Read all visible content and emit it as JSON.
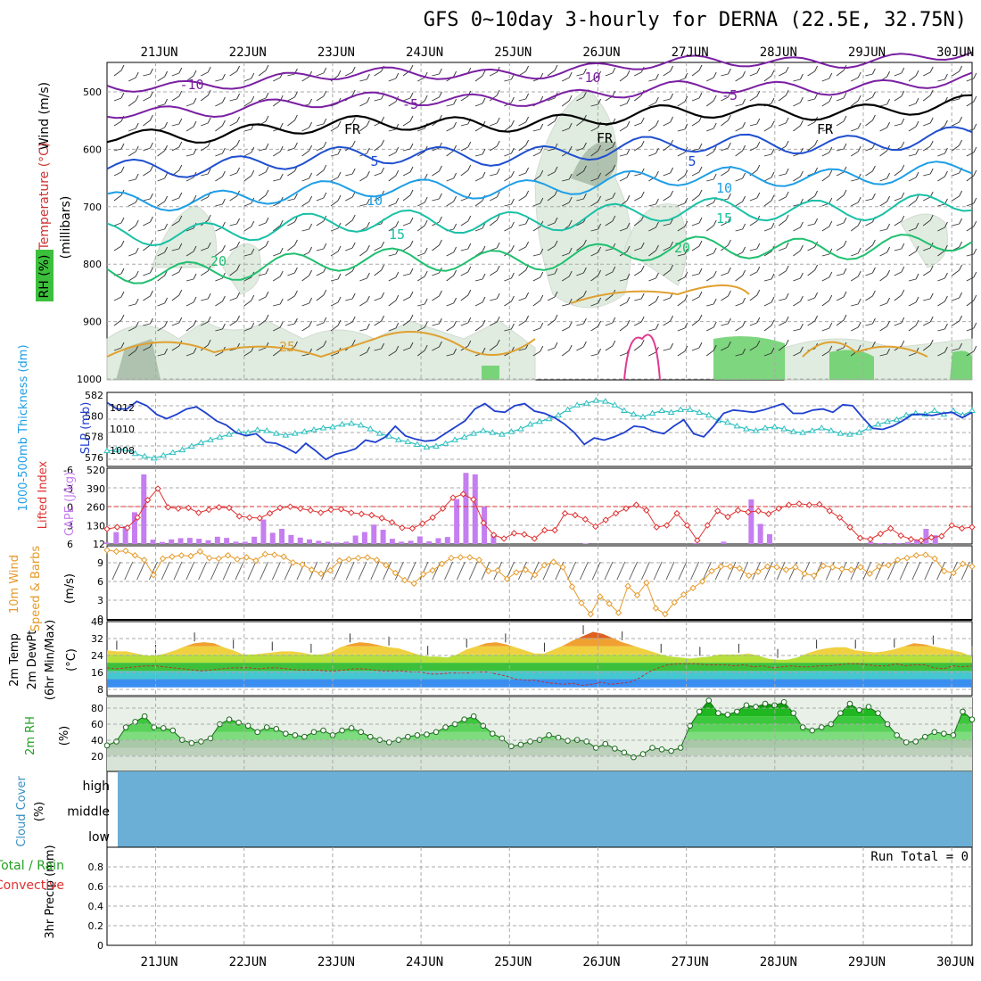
{
  "title": "GFS 0~10day 3-hourly for DERNA (22.5E, 32.75N)",
  "dates": [
    "21JUN",
    "22JUN",
    "23JUN",
    "24JUN",
    "25JUN",
    "26JUN",
    "27JUN",
    "28JUN",
    "29JUN",
    "30JUN"
  ],
  "colors": {
    "temp_purple": "#7a1fa2",
    "freezing": "#000000",
    "temp_blue": "#1f4fd0",
    "temp_lblue": "#1e9ee6",
    "temp_teal": "#19c0a6",
    "temp_green": "#1fbf6f",
    "temp_orange": "#e0a030",
    "rh_green": "#6fd06f",
    "slp": "#1f3fcf",
    "thickness": "#2ec0c0",
    "cape": "#c57ef0",
    "li": "#e03030",
    "wind": "#e59a2a",
    "cloud": "#6baed6",
    "rh2m": "#22c322"
  },
  "panels": {
    "upper": {
      "ylabel_wind": "Wind (m/s)",
      "ylabel_temp": "Temperature (°C)",
      "ylabel_rh": "RH (%)",
      "ylabel_units": "(millibars)",
      "levels": [
        "500",
        "600",
        "700",
        "800",
        "900",
        "1000"
      ],
      "contour_labels": [
        {
          "text": "-10",
          "color": "temp_purple"
        },
        {
          "text": "-5",
          "color": "temp_purple"
        },
        {
          "text": "FR",
          "color": "freezing"
        },
        {
          "text": "5",
          "color": "temp_blue"
        },
        {
          "text": "10",
          "color": "temp_lblue"
        },
        {
          "text": "15",
          "color": "temp_teal"
        },
        {
          "text": "20",
          "color": "temp_green"
        },
        {
          "text": "25",
          "color": "temp_orange"
        },
        {
          "text": "-10",
          "color": "temp_purple"
        },
        {
          "text": "-5",
          "color": "temp_purple"
        },
        {
          "text": "FR",
          "color": "freezing"
        },
        {
          "text": "5",
          "color": "temp_blue"
        },
        {
          "text": "10",
          "color": "temp_lblue"
        },
        {
          "text": "15",
          "color": "temp_teal"
        },
        {
          "text": "20",
          "color": "temp_green"
        },
        {
          "text": "FR",
          "color": "freezing"
        }
      ]
    },
    "slp": {
      "ylabel_thick": "1000-500mb Thickness (dm)",
      "ylabel_slp": "SLP (mb)",
      "left_ticks": [
        "582",
        "580",
        "578",
        "576"
      ],
      "right_ticks": [
        "1012",
        "1010",
        "1008"
      ]
    },
    "cape": {
      "ylabel_li": "Lifted Index",
      "ylabel_cape": "CAPE (J/kg)",
      "left_ticks": [
        "-6",
        "-3",
        "0",
        "3",
        "6"
      ],
      "right_ticks": [
        "520",
        "390",
        "260",
        "130",
        "12"
      ]
    },
    "wind10": {
      "ylabel_a": "10m Wind",
      "ylabel_b": "Speed & Barbs",
      "ylabel_units": "(m/s)",
      "ticks": [
        "9",
        "6",
        "3",
        "0"
      ]
    },
    "temp2m": {
      "ylabel_a": "2m Temp",
      "ylabel_b": "2m DewPt",
      "ylabel_c": "(6hr Min/Max)",
      "ylabel_units": "(°C)",
      "ticks": [
        "40",
        "32",
        "24",
        "16",
        "8"
      ]
    },
    "rh2m": {
      "ylabel": "2m RH",
      "ylabel_units": "(%)",
      "ticks": [
        "80",
        "60",
        "40",
        "20"
      ]
    },
    "cloud": {
      "ylabel": "Cloud Cover",
      "ylabel_units": "(%)",
      "rows": [
        "high",
        "middle",
        "low"
      ]
    },
    "precip": {
      "ylabel_a": "Total / Rain",
      "ylabel_b": "Convective",
      "ylabel_c": "3hr Precip (mm)",
      "ticks": [
        "0.8",
        "0.6",
        "0.4",
        "0.2",
        "0"
      ],
      "run_total": "Run Total = 0"
    }
  },
  "chart_data": [
    {
      "type": "line",
      "name": "SLP",
      "axis": "mb",
      "ylim": [
        1007,
        1013.4
      ],
      "x_days": 10,
      "values": [
        1012.7,
        1012.1,
        1012.1,
        1012.8,
        1012.4,
        1011.6,
        1011.2,
        1011.6,
        1012.1,
        1012.3,
        1011.7,
        1011.0,
        1010.6,
        1009.9,
        1009.6,
        1009.8,
        1009.0,
        1008.9,
        1008.5,
        1008.0,
        1008.9,
        1008.2,
        1007.4,
        1007.9,
        1008.1,
        1008.4,
        1009.2,
        1009.0,
        1009.5,
        1010.5,
        1009.6,
        1009.3,
        1009.1,
        1009.2,
        1009.8,
        1010.4,
        1011.0,
        1012.1,
        1012.6,
        1011.9,
        1011.8,
        1012.4,
        1012.6,
        1011.9,
        1011.7,
        1011.3,
        1010.7,
        1009.9,
        1008.8,
        1009.4,
        1009.2,
        1009.5,
        1009.9,
        1010.5,
        1010.4,
        1010.0,
        1009.8,
        1010.5,
        1011.1,
        1009.8,
        1009.5,
        1010.5,
        1011.7,
        1012.0,
        1011.9,
        1011.8,
        1012.0,
        1012.3,
        1012.6,
        1011.7,
        1011.7,
        1012.0,
        1012.1,
        1011.8,
        1012.5,
        1012.4,
        1011.3,
        1010.3,
        1010.2,
        1010.5,
        1011.0,
        1011.6,
        1011.6,
        1011.5,
        1011.7,
        1011.8,
        1011.3,
        1011.8
      ],
      "color": "slp"
    },
    {
      "type": "line",
      "name": "1000-500mb Thickness",
      "axis": "dm",
      "ylim": [
        575,
        582.5
      ],
      "x_days": 10,
      "values": [
        576.4,
        576.5,
        576.6,
        576.1,
        575.8,
        575.6,
        575.9,
        576.2,
        576.5,
        576.9,
        577.3,
        577.6,
        577.9,
        578.2,
        578.5,
        578.4,
        578.7,
        578.6,
        578.3,
        578.1,
        578.3,
        578.5,
        578.7,
        578.9,
        579.0,
        579.3,
        579.4,
        579.2,
        578.8,
        578.3,
        578.0,
        577.6,
        577.4,
        577.1,
        576.8,
        576.9,
        577.2,
        577.6,
        577.9,
        578.3,
        578.6,
        578.4,
        578.2,
        578.5,
        578.8,
        579.3,
        579.6,
        579.9,
        580.3,
        580.9,
        581.4,
        581.6,
        581.9,
        581.8,
        581.4,
        580.8,
        580.4,
        580.1,
        580.5,
        580.8,
        580.6,
        580.9,
        580.9,
        580.6,
        580.3,
        579.7,
        579.5,
        579.1,
        578.8,
        578.6,
        578.9,
        579.0,
        578.8,
        578.5,
        578.4,
        578.6,
        578.9,
        578.6,
        578.3,
        578.2,
        578.4,
        578.9,
        579.3,
        579.6,
        579.8,
        580.3,
        580.5,
        580.4,
        580.8,
        580.4,
        580.8,
        580.3,
        580.8
      ],
      "color": "thickness"
    },
    {
      "type": "bar",
      "name": "CAPE",
      "axis": "J/kg",
      "ylim": [
        12,
        520
      ],
      "x_days": 10,
      "values": [
        22,
        94,
        135,
        230,
        490,
        42,
        26,
        44,
        52,
        54,
        48,
        38,
        62,
        54,
        28,
        28,
        62,
        180,
        89,
        116,
        74,
        56,
        44,
        34,
        28,
        22,
        28,
        70,
        94,
        145,
        110,
        48,
        28,
        34,
        64,
        30,
        52,
        60,
        320,
        500,
        490,
        268,
        76,
        0,
        0,
        0,
        0,
        0,
        0,
        0,
        0,
        0,
        16,
        0,
        0,
        0,
        0,
        0,
        0,
        0,
        0,
        0,
        0,
        0,
        18,
        0,
        0,
        28,
        0,
        0,
        318,
        150,
        80,
        0,
        0,
        0,
        0,
        0,
        0,
        0,
        0,
        0,
        0,
        28,
        18,
        18,
        18,
        26,
        40,
        116,
        72,
        0,
        0,
        0,
        0
      ],
      "color": "cape"
    },
    {
      "type": "line",
      "name": "Lifted Index",
      "axis": "LI",
      "ylim": [
        6,
        -6
      ],
      "x_days": 10,
      "values": [
        3.8,
        3.5,
        3.6,
        1.9,
        -1.0,
        -2.9,
        0.2,
        0.4,
        0.3,
        1.1,
        0.6,
        0.2,
        0.3,
        1.7,
        1.9,
        2.0,
        1.2,
        0.3,
        0.1,
        0.4,
        0.7,
        1.1,
        0.6,
        0.5,
        1.1,
        1.3,
        1.5,
        2.0,
        2.7,
        3.6,
        3.7,
        2.9,
        1.9,
        0.4,
        -1.4,
        -2.0,
        -1.1,
        2.8,
        4.8,
        5.4,
        4.5,
        4.7,
        5.4,
        4.0,
        4.0,
        1.2,
        1.5,
        2.2,
        3.4,
        2.3,
        1.2,
        0.4,
        -0.2,
        0.7,
        3.5,
        3.2,
        1.2,
        3.2,
        5.7,
        3.2,
        0.8,
        1.8,
        0.7,
        1.0,
        0.8,
        1.3,
        0.4,
        -0.2,
        -0.4,
        -0.2,
        -0.3,
        0.8,
        1.9,
        3.5,
        5.3,
        5.5,
        4.6,
        3.7,
        4.9,
        5.5,
        5.7,
        5.2,
        5.0,
        3.2,
        3.7,
        3.5
      ],
      "color": "li"
    },
    {
      "type": "line",
      "name": "10m Wind Speed",
      "axis": "m/s",
      "ylim": [
        0,
        10.8
      ],
      "x_days": 10,
      "values": [
        10.4,
        10.2,
        10.3,
        9.6,
        8.9,
        6.6,
        9.1,
        9.4,
        9.6,
        9.5,
        10.2,
        9.2,
        9.1,
        9.6,
        9.0,
        9.3,
        8.8,
        9.8,
        9.7,
        9.4,
        8.5,
        8.2,
        7.4,
        6.8,
        7.3,
        8.8,
        9.0,
        9.2,
        9.3,
        8.9,
        8.1,
        6.9,
        5.8,
        5.3,
        6.7,
        7.3,
        8.3,
        9.2,
        9.3,
        9.3,
        8.9,
        7.2,
        7.3,
        6.0,
        7.0,
        7.4,
        6.6,
        8.1,
        8.6,
        7.8,
        4.8,
        2.3,
        0.6,
        3.3,
        2.2,
        0.8,
        4.9,
        3.5,
        5.4,
        1.5,
        0.6,
        2.4,
        3.6,
        4.6,
        5.6,
        7.2,
        7.9,
        7.9,
        7.6,
        6.5,
        7.1,
        7.9,
        7.8,
        7.4,
        7.8,
        6.8,
        6.5,
        8.0,
        7.8,
        7.5,
        7.4,
        7.8,
        6.8,
        7.9,
        8.1,
        8.9,
        9.2,
        9.6,
        9.7,
        9.1,
        7.2,
        6.9,
        8.3,
        7.9
      ],
      "color": "wind"
    },
    {
      "type": "area",
      "name": "2m Temp",
      "axis": "°C",
      "ylim": [
        4,
        40
      ],
      "x_days": 10,
      "values": [
        26.0,
        25.5,
        25.5,
        24.5,
        23.5,
        23.5,
        24.5,
        26.0,
        28.0,
        29.5,
        30.0,
        29.5,
        27.5,
        26.0,
        24.0,
        24.0,
        24.5,
        25.0,
        25.5,
        25.5,
        25.0,
        24.0,
        24.0,
        25.0,
        27.5,
        29.0,
        30.0,
        29.5,
        28.5,
        27.5,
        27.0,
        25.5,
        24.0,
        23.0,
        23.0,
        22.5,
        24.0,
        26.5,
        28.0,
        29.5,
        30.0,
        29.0,
        27.5,
        26.0,
        24.5,
        24.5,
        26.5,
        28.5,
        31.0,
        33.0,
        35.0,
        34.0,
        32.0,
        30.0,
        28.5,
        27.0,
        25.5,
        24.0,
        23.0,
        22.5,
        22.0,
        22.5,
        23.0,
        24.0,
        24.0,
        24.0,
        24.5,
        23.5,
        22.0,
        21.5,
        21.5,
        22.5,
        24.5,
        26.0,
        27.0,
        27.5,
        27.5,
        26.0,
        25.5,
        25.0,
        25.5,
        26.5,
        28.0,
        29.5,
        29.0,
        28.0,
        27.0,
        26.0,
        25.0,
        23.0
      ],
      "color": "temp_orange"
    },
    {
      "type": "line",
      "name": "2m DewPt",
      "axis": "°C",
      "ylim": [
        4,
        40
      ],
      "x_days": 10,
      "values": [
        17.5,
        17.0,
        17.5,
        18.0,
        18.5,
        18.5,
        18.0,
        17.5,
        17.0,
        16.5,
        16.0,
        16.5,
        17.0,
        17.5,
        17.5,
        17.5,
        17.0,
        17.5,
        17.5,
        17.0,
        16.5,
        16.5,
        16.5,
        16.0,
        16.0,
        16.5,
        17.0,
        17.0,
        16.5,
        16.0,
        16.0,
        16.0,
        15.5,
        15.5,
        14.5,
        14.5,
        15.0,
        15.0,
        15.0,
        15.5,
        15.5,
        14.5,
        13.5,
        12.0,
        11.5,
        11.5,
        10.5,
        10.0,
        9.5,
        10.0,
        9.0,
        9.5,
        10.5,
        9.5,
        10.0,
        10.5,
        12.5,
        15.5,
        17.5,
        19.0,
        19.5,
        19.5,
        19.5,
        19.0,
        19.0,
        19.0,
        18.5,
        19.0,
        18.0,
        18.5,
        17.5,
        18.0,
        18.5,
        18.0,
        18.0,
        18.5,
        18.5,
        19.0,
        19.5,
        19.5,
        19.0,
        18.5,
        18.5,
        19.5,
        18.5,
        19.0,
        19.0,
        17.5,
        17.0,
        18.5,
        18.0,
        18.5
      ],
      "color": "li"
    },
    {
      "type": "area",
      "name": "2m RH",
      "axis": "%",
      "ylim": [
        0,
        94
      ],
      "x_days": 10,
      "values": [
        33,
        38,
        56,
        63,
        70,
        56,
        55,
        52,
        40,
        36,
        38,
        42,
        60,
        66,
        62,
        58,
        50,
        56,
        54,
        48,
        46,
        44,
        50,
        52,
        46,
        52,
        55,
        50,
        44,
        40,
        37,
        40,
        44,
        46,
        47,
        50,
        56,
        60,
        66,
        70,
        58,
        48,
        42,
        32,
        34,
        38,
        40,
        46,
        43,
        39,
        40,
        38,
        30,
        35,
        29,
        24,
        18,
        22,
        30,
        28,
        26,
        30,
        58,
        76,
        90,
        74,
        72,
        76,
        84,
        82,
        86,
        84,
        88,
        74,
        56,
        52,
        56,
        60,
        74,
        86,
        78,
        82,
        74,
        60,
        46,
        37,
        38,
        44,
        50,
        48,
        46,
        76,
        66
      ],
      "color": "rh2m"
    },
    {
      "type": "bar",
      "name": "3hr Precip",
      "axis": "mm",
      "ylim": [
        0,
        1
      ],
      "x_days": 10,
      "values": []
    }
  ]
}
